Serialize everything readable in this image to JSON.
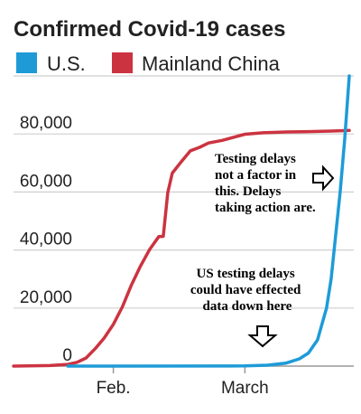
{
  "chart_data": {
    "type": "line",
    "title": "Confirmed Covid-19 cases",
    "x_ticks": [
      {
        "label": "Feb.",
        "value": "2020-02-01"
      },
      {
        "label": "March",
        "value": "2020-03-01"
      }
    ],
    "x_range": [
      "2020-01-10",
      "2020-03-25"
    ],
    "ylim": [
      0,
      100000
    ],
    "y_ticks": [
      0,
      20000,
      40000,
      60000,
      80000
    ],
    "y_tick_labels": [
      "0",
      "20,000",
      "40,000",
      "60,000",
      "80,000"
    ],
    "grid": "horizontal",
    "legend_position": "top",
    "series": [
      {
        "name": "U.S.",
        "color": "#1e9bd7",
        "points": [
          {
            "x": "2020-01-22",
            "y": 0
          },
          {
            "x": "2020-03-01",
            "y": 70
          },
          {
            "x": "2020-03-06",
            "y": 300
          },
          {
            "x": "2020-03-10",
            "y": 1000
          },
          {
            "x": "2020-03-13",
            "y": 2500
          },
          {
            "x": "2020-03-15",
            "y": 4500
          },
          {
            "x": "2020-03-17",
            "y": 9000
          },
          {
            "x": "2020-03-19",
            "y": 20000
          },
          {
            "x": "2020-03-20",
            "y": 30000
          },
          {
            "x": "2020-03-21",
            "y": 45000
          },
          {
            "x": "2020-03-22",
            "y": 60000
          },
          {
            "x": "2020-03-23",
            "y": 78000
          },
          {
            "x": "2020-03-24",
            "y": 100000
          }
        ]
      },
      {
        "name": "Mainland China",
        "color": "#cc3340",
        "points": [
          {
            "x": "2020-01-10",
            "y": 0
          },
          {
            "x": "2020-01-18",
            "y": 200
          },
          {
            "x": "2020-01-22",
            "y": 600
          },
          {
            "x": "2020-01-24",
            "y": 1300
          },
          {
            "x": "2020-01-26",
            "y": 2800
          },
          {
            "x": "2020-01-28",
            "y": 6000
          },
          {
            "x": "2020-01-30",
            "y": 9700
          },
          {
            "x": "2020-02-01",
            "y": 14400
          },
          {
            "x": "2020-02-03",
            "y": 20400
          },
          {
            "x": "2020-02-05",
            "y": 28000
          },
          {
            "x": "2020-02-07",
            "y": 34500
          },
          {
            "x": "2020-02-09",
            "y": 40200
          },
          {
            "x": "2020-02-11",
            "y": 44600
          },
          {
            "x": "2020-02-12",
            "y": 44700
          },
          {
            "x": "2020-02-13",
            "y": 59800
          },
          {
            "x": "2020-02-14",
            "y": 66500
          },
          {
            "x": "2020-02-16",
            "y": 70500
          },
          {
            "x": "2020-02-18",
            "y": 74200
          },
          {
            "x": "2020-02-20",
            "y": 75400
          },
          {
            "x": "2020-02-22",
            "y": 76900
          },
          {
            "x": "2020-02-25",
            "y": 77800
          },
          {
            "x": "2020-03-01",
            "y": 79900
          },
          {
            "x": "2020-03-05",
            "y": 80400
          },
          {
            "x": "2020-03-10",
            "y": 80700
          },
          {
            "x": "2020-03-15",
            "y": 80800
          },
          {
            "x": "2020-03-20",
            "y": 81000
          },
          {
            "x": "2020-03-24",
            "y": 81200
          }
        ]
      }
    ],
    "annotations": [
      {
        "id": "testing-not-factor",
        "lines": [
          "Testing delays",
          "not a factor in",
          "this.  Delays",
          "taking action are."
        ],
        "arrow": "right"
      },
      {
        "id": "testing-affected",
        "lines": [
          "US testing delays",
          "could have effected",
          "data down here"
        ],
        "arrow": "down"
      }
    ]
  }
}
